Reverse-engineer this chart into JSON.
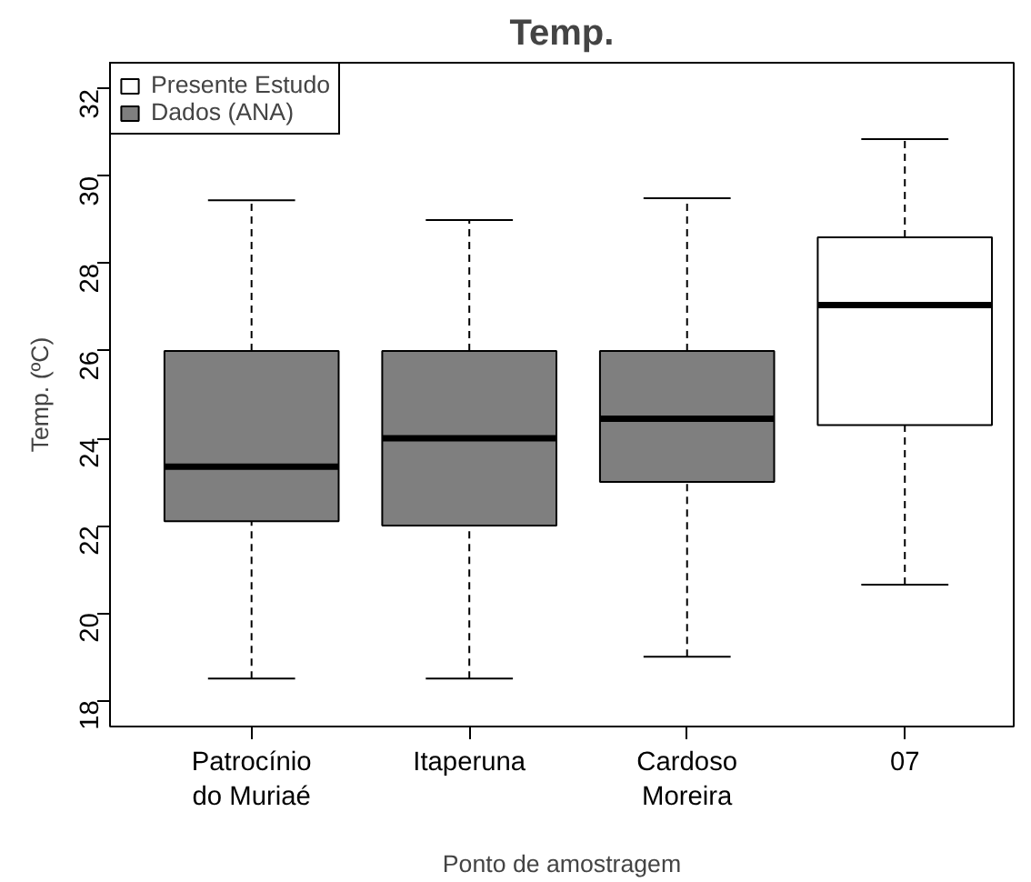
{
  "chart_data": {
    "type": "box",
    "title": "Temp.",
    "xlabel": "Ponto de amostragem",
    "ylabel": "Temp. (ºC)",
    "categories": [
      "Patrocínio\ndo Muriaé",
      "Itaperuna",
      "Cardoso\nMoreira",
      "07"
    ],
    "series": [
      {
        "name": "Presente Estudo",
        "color": "#ffffff",
        "boxes": [
          null,
          null,
          null,
          {
            "low": 20.65,
            "q1": 24.3,
            "median": 27.05,
            "q3": 28.6,
            "high": 30.85
          }
        ]
      },
      {
        "name": "Dados (ANA)",
        "color": "#7f7f7f",
        "boxes": [
          {
            "low": 18.5,
            "q1": 22.1,
            "median": 23.35,
            "q3": 26.0,
            "high": 29.45
          },
          {
            "low": 18.5,
            "q1": 22.0,
            "median": 24.0,
            "q3": 26.0,
            "high": 29.0
          },
          {
            "low": 19.0,
            "q1": 23.0,
            "median": 24.45,
            "q3": 26.0,
            "high": 29.5
          },
          null
        ]
      }
    ],
    "ylim": [
      17.4,
      32.6
    ],
    "yticks": [
      18,
      20,
      22,
      24,
      26,
      28,
      30,
      32
    ],
    "grid": false,
    "legend": "top left"
  }
}
